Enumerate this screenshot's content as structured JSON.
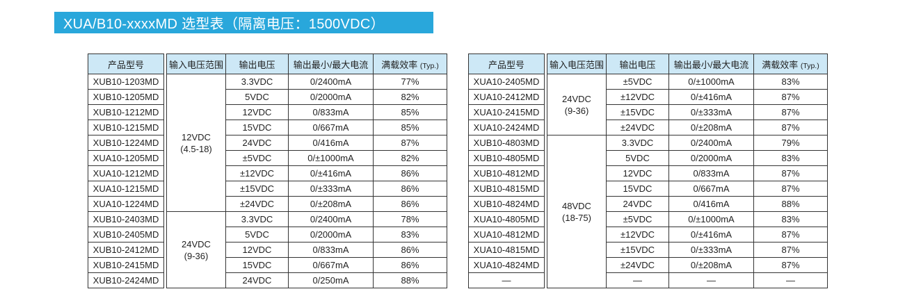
{
  "title": "XUA/B10-xxxxMD 选型表（隔离电压：1500VDC）",
  "colors": {
    "title_bg": "#29A7DB",
    "title_text": "#FFFFFF",
    "header_bg": "#CDE8F6",
    "border": "#333333",
    "text": "#1F1F1F"
  },
  "columns": {
    "model": "产品型号",
    "input_range": "输入电压范围",
    "output_voltage": "输出电压",
    "output_current": "输出最小/最大电流",
    "efficiency": "满载效率",
    "efficiency_note": "(Typ.)"
  },
  "tables": [
    {
      "input_groups": [
        {
          "voltage": "12VDC",
          "range": "(4.5-18)",
          "span": 9
        },
        {
          "voltage": "24VDC",
          "range": "(9-36)",
          "span": 5
        }
      ],
      "rows": [
        [
          "XUB10-1203MD",
          "3.3VDC",
          "0/2400mA",
          "77%"
        ],
        [
          "XUB10-1205MD",
          "5VDC",
          "0/2000mA",
          "82%"
        ],
        [
          "XUB10-1212MD",
          "12VDC",
          "0/833mA",
          "85%"
        ],
        [
          "XUB10-1215MD",
          "15VDC",
          "0/667mA",
          "85%"
        ],
        [
          "XUB10-1224MD",
          "24VDC",
          "0/416mA",
          "87%"
        ],
        [
          "XUA10-1205MD",
          "±5VDC",
          "0/±1000mA",
          "82%"
        ],
        [
          "XUA10-1212MD",
          "±12VDC",
          "0/±416mA",
          "86%"
        ],
        [
          "XUA10-1215MD",
          "±15VDC",
          "0/±333mA",
          "86%"
        ],
        [
          "XUA10-1224MD",
          "±24VDC",
          "0/±208mA",
          "86%"
        ],
        [
          "XUB10-2403MD",
          "3.3VDC",
          "0/2400mA",
          "78%"
        ],
        [
          "XUB10-2405MD",
          "5VDC",
          "0/2000mA",
          "83%"
        ],
        [
          "XUB10-2412MD",
          "12VDC",
          "0/833mA",
          "86%"
        ],
        [
          "XUB10-2415MD",
          "15VDC",
          "0/667mA",
          "86%"
        ],
        [
          "XUB10-2424MD",
          "24VDC",
          "0/250mA",
          "88%"
        ]
      ]
    },
    {
      "input_groups": [
        {
          "voltage": "24VDC",
          "range": "(9-36)",
          "span": 4
        },
        {
          "voltage": "48VDC",
          "range": "(18-75)",
          "span": 10
        }
      ],
      "rows": [
        [
          "XUA10-2405MD",
          "±5VDC",
          "0/±1000mA",
          "83%"
        ],
        [
          "XUA10-2412MD",
          "±12VDC",
          "0/±416mA",
          "87%"
        ],
        [
          "XUA10-2415MD",
          "±15VDC",
          "0/±333mA",
          "87%"
        ],
        [
          "XUA10-2424MD",
          "±24VDC",
          "0/±208mA",
          "87%"
        ],
        [
          "XUB10-4803MD",
          "3.3VDC",
          "0/2400mA",
          "79%"
        ],
        [
          "XUB10-4805MD",
          "5VDC",
          "0/2000mA",
          "83%"
        ],
        [
          "XUB10-4812MD",
          "12VDC",
          "0/833mA",
          "87%"
        ],
        [
          "XUB10-4815MD",
          "15VDC",
          "0/667mA",
          "87%"
        ],
        [
          "XUB10-4824MD",
          "24VDC",
          "0/416mA",
          "88%"
        ],
        [
          "XUA10-4805MD",
          "±5VDC",
          "0/±1000mA",
          "83%"
        ],
        [
          "XUA10-4812MD",
          "±12VDC",
          "0/±416mA",
          "87%"
        ],
        [
          "XUA10-4815MD",
          "±15VDC",
          "0/±333mA",
          "87%"
        ],
        [
          "XUA10-4824MD",
          "±24VDC",
          "0/±208mA",
          "87%"
        ],
        [
          "—",
          "—",
          "—",
          "—"
        ]
      ]
    }
  ]
}
